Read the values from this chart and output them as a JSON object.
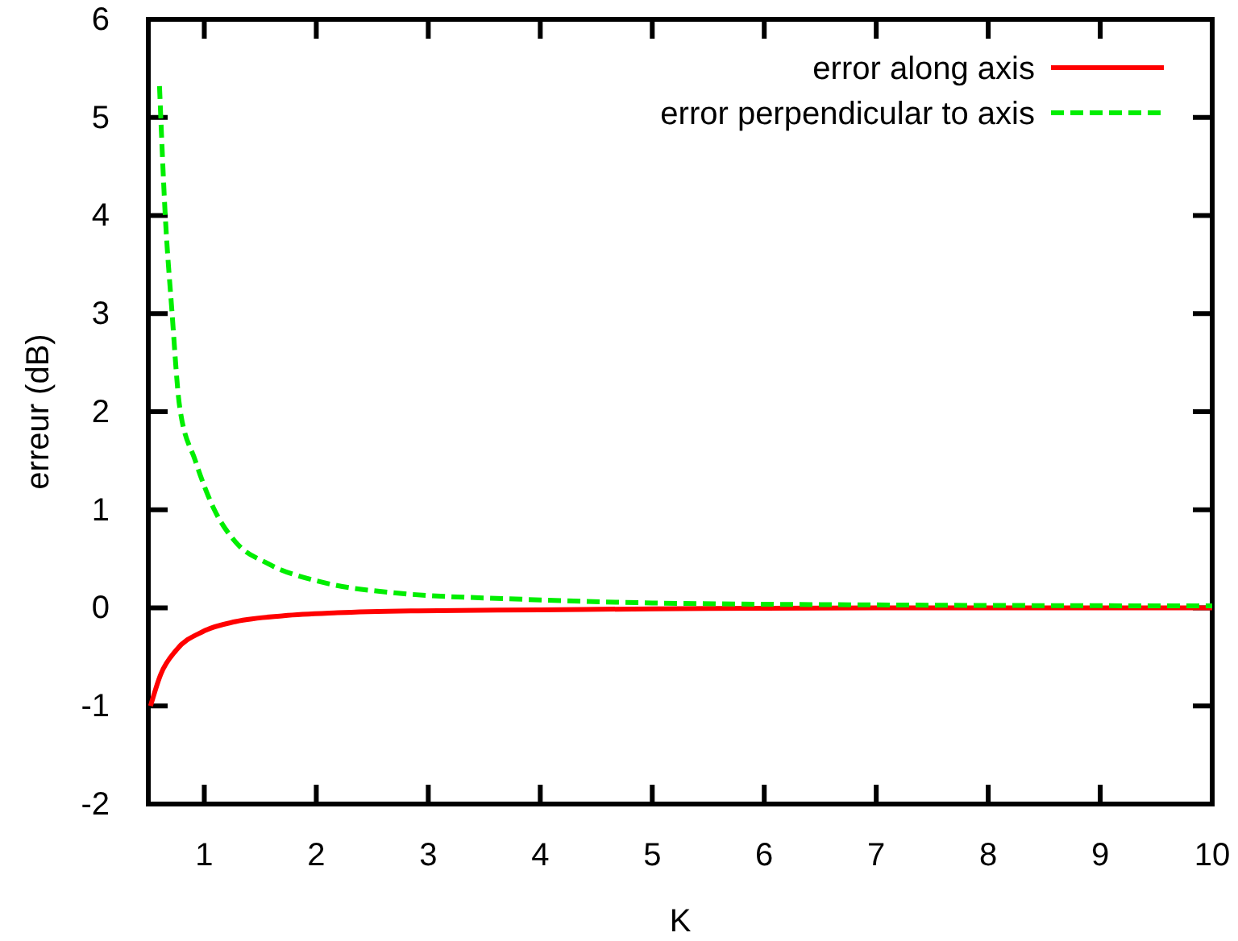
{
  "chart_data": {
    "type": "line",
    "xlabel": "K",
    "ylabel": "erreur (dB)",
    "xlim": [
      0.5,
      10
    ],
    "xticks": [
      1,
      2,
      3,
      4,
      5,
      6,
      7,
      8,
      9,
      10
    ],
    "ylim": [
      -2,
      6
    ],
    "yticks": [
      -2,
      -1,
      0,
      1,
      2,
      3,
      4,
      5,
      6
    ],
    "grid": false,
    "legend": "top right",
    "series": [
      {
        "name": "error along axis",
        "color": "#ff0000",
        "line_style": "solid",
        "x": [
          0.52,
          0.61,
          0.75,
          0.99,
          1.28,
          1.71,
          2.19,
          2.91,
          4,
          5,
          7,
          10
        ],
        "values": [
          -1.0,
          -0.68,
          -0.43,
          -0.24,
          -0.14,
          -0.08,
          -0.05,
          -0.03,
          -0.02,
          -0.01,
          0,
          0
        ]
      },
      {
        "name": "error perpendicular to axis",
        "color": "#00ee00",
        "line_style": "dashed",
        "x": [
          0.6,
          0.65,
          0.71,
          0.78,
          0.92,
          1.09,
          1.28,
          1.57,
          2.06,
          2.73,
          3.78,
          5,
          7,
          10
        ],
        "values": [
          5.32,
          4.03,
          3.04,
          2.05,
          1.5,
          1.0,
          0.67,
          0.45,
          0.26,
          0.15,
          0.09,
          0.05,
          0.03,
          0.02
        ]
      }
    ]
  }
}
